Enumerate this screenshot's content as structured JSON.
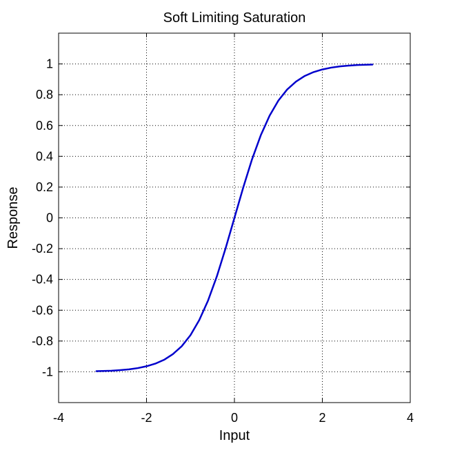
{
  "chart_data": {
    "type": "line",
    "title": "Soft Limiting Saturation",
    "xlabel": "Input",
    "ylabel": "Response",
    "xlim": [
      -4,
      4
    ],
    "ylim": [
      -1.2,
      1.2
    ],
    "xticks": [
      -4,
      -2,
      0,
      2,
      4
    ],
    "xtick_labels": [
      "-4",
      "-2",
      "0",
      "2",
      "4"
    ],
    "yticks": [
      -1,
      -0.8,
      -0.6,
      -0.4,
      -0.2,
      0,
      0.2,
      0.4,
      0.6,
      0.8,
      1
    ],
    "ytick_labels": [
      "-1",
      "-0.8",
      "-0.6",
      "-0.4",
      "-0.2",
      "0",
      "0.2",
      "0.4",
      "0.6",
      "0.8",
      "1"
    ],
    "grid": true,
    "legend": "none",
    "series": [
      {
        "color": "#0000cc",
        "x": [
          -3.14,
          -3.0,
          -2.8,
          -2.6,
          -2.4,
          -2.2,
          -2.0,
          -1.8,
          -1.6,
          -1.4,
          -1.2,
          -1.0,
          -0.8,
          -0.6,
          -0.4,
          -0.2,
          0.0,
          0.2,
          0.4,
          0.6,
          0.8,
          1.0,
          1.2,
          1.4,
          1.6,
          1.8,
          2.0,
          2.2,
          2.4,
          2.6,
          2.8,
          3.0,
          3.14
        ],
        "y": [
          -0.996,
          -0.995,
          -0.993,
          -0.989,
          -0.984,
          -0.976,
          -0.964,
          -0.947,
          -0.922,
          -0.885,
          -0.834,
          -0.762,
          -0.664,
          -0.537,
          -0.38,
          -0.197,
          0.0,
          0.197,
          0.38,
          0.537,
          0.664,
          0.762,
          0.834,
          0.885,
          0.922,
          0.947,
          0.964,
          0.976,
          0.984,
          0.989,
          0.993,
          0.995,
          0.996
        ]
      }
    ]
  }
}
